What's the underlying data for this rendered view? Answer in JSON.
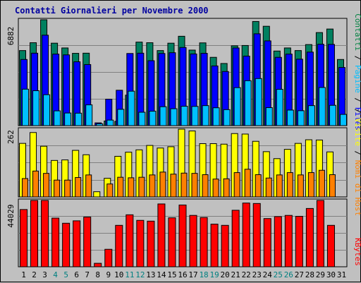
{
  "title": "Contatti Giornalieri per Novembre 2000",
  "legend_parts": [
    {
      "text": "Contatti",
      "color": "#008040"
    },
    {
      "text": " / ",
      "color": "#000000"
    },
    {
      "text": "Pagine",
      "color": "#00BFFF"
    },
    {
      "text": " / ",
      "color": "#000000"
    },
    {
      "text": "Files",
      "color": "#0000FF"
    },
    {
      "text": " / ",
      "color": "#000000"
    },
    {
      "text": "Visite",
      "color": "#FFFF00"
    },
    {
      "text": " / ",
      "color": "#000000"
    },
    {
      "text": "Nomi di Host",
      "color": "#FF8000"
    },
    {
      "text": "KBytes",
      "color": "#FF0000"
    }
  ],
  "chart_data": [
    {
      "type": "bar",
      "title": "Contatti Giornalieri per Novembre 2000",
      "y_max_label": "6882",
      "ylim": [
        0,
        6882
      ],
      "x": [
        1,
        2,
        3,
        4,
        5,
        6,
        7,
        8,
        9,
        10,
        11,
        12,
        13,
        14,
        15,
        16,
        17,
        18,
        19,
        20,
        21,
        22,
        23,
        24,
        25,
        26,
        27,
        28,
        29,
        30,
        31
      ],
      "series": [
        {
          "name": "Contatti",
          "color": "#008060",
          "values": [
            4880,
            5390,
            6882,
            5360,
            5050,
            4700,
            4710,
            0,
            300,
            280,
            1980,
            5430,
            5390,
            4880,
            5360,
            5810,
            4910,
            5380,
            4440,
            4040,
            5190,
            5210,
            6770,
            6460,
            4850,
            5050,
            4880,
            5270,
            6050,
            6280,
            4300
          ]
        },
        {
          "name": "Files",
          "color": "#0000FF",
          "values": [
            4300,
            4710,
            5880,
            4650,
            4600,
            4150,
            3970,
            180,
            1720,
            2300,
            4690,
            4710,
            4220,
            4690,
            4740,
            5080,
            4660,
            4700,
            3880,
            3520,
            5050,
            4520,
            5970,
            5510,
            4440,
            4650,
            4320,
            4780,
            5290,
            5280,
            3780
          ]
        },
        {
          "name": "Pagine",
          "color": "#00BFFF",
          "values": [
            2370,
            2270,
            2010,
            960,
            820,
            810,
            1350,
            120,
            360,
            1060,
            2240,
            870,
            940,
            1230,
            1100,
            1260,
            1250,
            1300,
            1160,
            1040,
            2470,
            2920,
            3060,
            1170,
            2360,
            1010,
            970,
            1300,
            2480,
            1320,
            730
          ]
        }
      ]
    },
    {
      "type": "bar",
      "y_max_label": "262",
      "ylim": [
        0,
        262
      ],
      "x": [
        1,
        2,
        3,
        4,
        5,
        6,
        7,
        8,
        9,
        10,
        11,
        12,
        13,
        14,
        15,
        16,
        17,
        18,
        19,
        20,
        21,
        22,
        23,
        24,
        25,
        26,
        27,
        28,
        29,
        30,
        31
      ],
      "series": [
        {
          "name": "Visite",
          "color": "#FFFF00",
          "values": [
            207,
            249,
            196,
            141,
            143,
            180,
            163,
            20,
            72,
            157,
            173,
            182,
            199,
            189,
            194,
            262,
            255,
            206,
            206,
            204,
            245,
            243,
            215,
            175,
            148,
            184,
            207,
            221,
            220,
            174,
            null
          ]
        },
        {
          "name": "Nomi di Host",
          "color": "#FF8000",
          "values": [
            71,
            100,
            91,
            65,
            65,
            75,
            85,
            0,
            50,
            76,
            74,
            76,
            85,
            96,
            88,
            92,
            91,
            86,
            69,
            70,
            94,
            107,
            86,
            73,
            85,
            94,
            85,
            94,
            103,
            86,
            null
          ]
        }
      ]
    },
    {
      "type": "bar",
      "y_max_label": "44029",
      "ylim": [
        0,
        44029
      ],
      "x": [
        1,
        2,
        3,
        4,
        5,
        6,
        7,
        8,
        9,
        10,
        11,
        12,
        13,
        14,
        15,
        16,
        17,
        18,
        19,
        20,
        21,
        22,
        23,
        24,
        25,
        26,
        27,
        28,
        29,
        30,
        31
      ],
      "series": [
        {
          "name": "KBytes",
          "color": "#FF0000",
          "values": [
            38000,
            44029,
            44029,
            32300,
            28900,
            30500,
            33000,
            2300,
            11600,
            27500,
            34500,
            30800,
            30300,
            41700,
            32500,
            41000,
            34100,
            32700,
            28300,
            27500,
            37500,
            42300,
            42000,
            32000,
            33300,
            34100,
            33500,
            38700,
            44029,
            27500,
            null
          ]
        }
      ]
    }
  ],
  "x_tick_labels": [
    "1",
    "2",
    "3",
    "4",
    "5",
    "6",
    "7",
    "8",
    "9",
    "10",
    "11",
    "12",
    "13",
    "14",
    "15",
    "16",
    "17",
    "18",
    "19",
    "20",
    "21",
    "22",
    "23",
    "24",
    "25",
    "26",
    "27",
    "28",
    "29",
    "30",
    "31"
  ],
  "x_tick_colors": [
    "#000000",
    "#000000",
    "#000000",
    "#008080",
    "#008080",
    "#000000",
    "#000000",
    "#000000",
    "#000000",
    "#000000",
    "#008080",
    "#008080",
    "#000000",
    "#000000",
    "#000000",
    "#000000",
    "#000000",
    "#008080",
    "#008080",
    "#000000",
    "#000000",
    "#000000",
    "#000000",
    "#000000",
    "#008080",
    "#008080",
    "#000000",
    "#000000",
    "#000000",
    "#000000",
    "#000000"
  ]
}
